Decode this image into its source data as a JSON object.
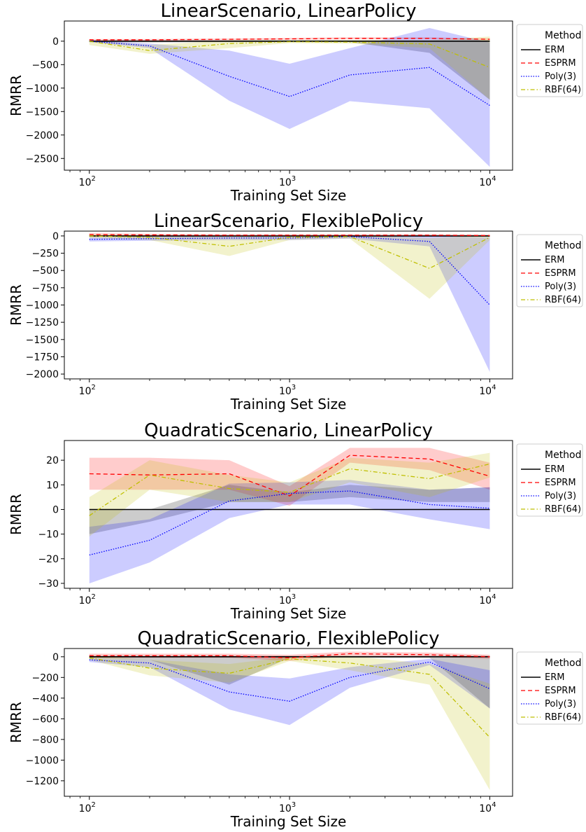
{
  "chart_data": [
    {
      "type": "line",
      "title": "LinearScenario, LinearPolicy",
      "xlabel": "Training Set Size",
      "ylabel": "RMRR",
      "xscale": "log",
      "xlim": [
        75,
        13000
      ],
      "ylim": [
        -2750,
        430
      ],
      "x_ticks": [
        {
          "base": "10",
          "exp": "2",
          "value": 100
        },
        {
          "base": "10",
          "exp": "3",
          "value": 1000
        },
        {
          "base": "10",
          "exp": "4",
          "value": 10000
        }
      ],
      "y_ticks": [
        0,
        -500,
        -1000,
        -1500,
        -2000,
        -2500
      ],
      "x": [
        100,
        200,
        500,
        1000,
        2000,
        5000,
        10000
      ],
      "legend": {
        "title": "Method",
        "placement": "outside-right"
      },
      "series": [
        {
          "name": "ERM",
          "style": "solid",
          "color": "#000000",
          "values": [
            0,
            0,
            0,
            0,
            0,
            0,
            0
          ],
          "band_lower": [
            -20,
            -30,
            -20,
            -20,
            -20,
            -250,
            -1250
          ],
          "band_upper": [
            20,
            20,
            20,
            20,
            20,
            20,
            20
          ]
        },
        {
          "name": "ESPRM",
          "style": "dashed",
          "color": "#ff0000",
          "values": [
            30,
            30,
            40,
            50,
            60,
            60,
            40
          ],
          "band_lower": [
            10,
            10,
            20,
            30,
            40,
            40,
            20
          ],
          "band_upper": [
            45,
            45,
            55,
            70,
            80,
            80,
            60
          ]
        },
        {
          "name": "Poly(3)",
          "style": "dotted",
          "color": "#0000ff",
          "values": [
            0,
            -100,
            -750,
            -1180,
            -720,
            -560,
            -1370
          ],
          "band_lower": [
            -20,
            -150,
            -1270,
            -1870,
            -1280,
            -1430,
            -2680
          ],
          "band_upper": [
            20,
            -50,
            -200,
            -480,
            -150,
            280,
            -30
          ]
        },
        {
          "name": "RBF(64)",
          "style": "dashdot",
          "color": "#bfbf00",
          "values": [
            0,
            -200,
            -50,
            -10,
            -20,
            -60,
            -560
          ],
          "band_lower": [
            -80,
            -270,
            -150,
            -40,
            -50,
            -150,
            -1250
          ],
          "band_upper": [
            20,
            -80,
            20,
            20,
            20,
            20,
            100
          ]
        }
      ]
    },
    {
      "type": "line",
      "title": "LinearScenario, FlexiblePolicy",
      "xlabel": "Training Set Size",
      "ylabel": "RMRR",
      "xscale": "log",
      "xlim": [
        75,
        13000
      ],
      "ylim": [
        -2070,
        70
      ],
      "x_ticks": [
        {
          "base": "10",
          "exp": "2",
          "value": 100
        },
        {
          "base": "10",
          "exp": "3",
          "value": 1000
        },
        {
          "base": "10",
          "exp": "4",
          "value": 10000
        }
      ],
      "y_ticks": [
        0,
        -250,
        -500,
        -750,
        -1000,
        -1250,
        -1500,
        -1750,
        -2000
      ],
      "x": [
        100,
        200,
        500,
        1000,
        2000,
        5000,
        10000
      ],
      "legend": {
        "title": "Method",
        "placement": "outside-right"
      },
      "series": [
        {
          "name": "ERM",
          "style": "solid",
          "color": "#000000",
          "values": [
            0,
            0,
            0,
            0,
            0,
            0,
            0
          ],
          "band_lower": [
            -10,
            -10,
            -10,
            -10,
            -10,
            -10,
            -10
          ],
          "band_upper": [
            10,
            10,
            10,
            10,
            10,
            10,
            10
          ]
        },
        {
          "name": "ESPRM",
          "style": "dashed",
          "color": "#ff0000",
          "values": [
            20,
            15,
            10,
            10,
            10,
            10,
            5
          ],
          "band_lower": [
            0,
            0,
            -5,
            -5,
            -5,
            -5,
            -10
          ],
          "band_upper": [
            40,
            30,
            25,
            25,
            25,
            25,
            20
          ]
        },
        {
          "name": "Poly(3)",
          "style": "dotted",
          "color": "#0000ff",
          "values": [
            -50,
            -40,
            -30,
            -30,
            -10,
            -80,
            -1000
          ],
          "band_lower": [
            -80,
            -70,
            -60,
            -60,
            -40,
            -150,
            -1970
          ],
          "band_upper": [
            -20,
            -10,
            0,
            0,
            10,
            0,
            -20
          ]
        },
        {
          "name": "RBF(64)",
          "style": "dashdot",
          "color": "#bfbf00",
          "values": [
            0,
            -20,
            -150,
            -20,
            -10,
            -470,
            -20
          ],
          "band_lower": [
            -30,
            -60,
            -290,
            -60,
            -40,
            -910,
            -60
          ],
          "band_upper": [
            20,
            10,
            -10,
            10,
            10,
            -30,
            10
          ]
        }
      ]
    },
    {
      "type": "line",
      "title": "QuadraticScenario, LinearPolicy",
      "xlabel": "Training Set Size",
      "ylabel": "RMRR",
      "xscale": "log",
      "xlim": [
        75,
        13000
      ],
      "ylim": [
        -32,
        28
      ],
      "x_ticks": [
        {
          "base": "10",
          "exp": "2",
          "value": 100
        },
        {
          "base": "10",
          "exp": "3",
          "value": 1000
        },
        {
          "base": "10",
          "exp": "4",
          "value": 10000
        }
      ],
      "y_ticks": [
        20,
        10,
        0,
        -10,
        -20,
        -30
      ],
      "x": [
        100,
        200,
        500,
        1000,
        2000,
        5000,
        10000
      ],
      "legend": {
        "title": "Method",
        "placement": "outside-right"
      },
      "series": [
        {
          "name": "ERM",
          "style": "solid",
          "color": "#000000",
          "values": [
            0,
            0,
            0,
            0,
            0,
            0,
            0
          ],
          "band_lower": [
            -10,
            -5,
            3,
            3,
            5,
            3,
            3
          ],
          "band_upper": [
            0,
            0,
            10,
            7,
            10,
            8,
            9
          ]
        },
        {
          "name": "ESPRM",
          "style": "dashed",
          "color": "#ff0000",
          "values": [
            14.5,
            14,
            14.5,
            5.5,
            22,
            20.5,
            13.5
          ],
          "band_lower": [
            8,
            8,
            8,
            1.5,
            19,
            16,
            8
          ],
          "band_upper": [
            21,
            21,
            20,
            9.5,
            25,
            25,
            19
          ]
        },
        {
          "name": "Poly(3)",
          "style": "dotted",
          "color": "#0000ff",
          "values": [
            -18.5,
            -12.5,
            3.5,
            6.5,
            7.5,
            2,
            0.5
          ],
          "band_lower": [
            -30,
            -21.5,
            -3.5,
            2,
            2,
            -4,
            -8
          ],
          "band_upper": [
            -7,
            -4,
            10.5,
            11,
            12,
            8,
            9
          ]
        },
        {
          "name": "RBF(64)",
          "style": "dashdot",
          "color": "#bfbf00",
          "values": [
            -2.5,
            14,
            8.5,
            7,
            16.5,
            12.5,
            18.5
          ],
          "band_lower": [
            -11,
            8,
            3,
            3,
            11,
            5,
            13
          ],
          "band_upper": [
            5,
            20,
            14,
            11,
            21,
            19,
            23
          ]
        }
      ]
    },
    {
      "type": "line",
      "title": "QuadraticScenario, FlexiblePolicy",
      "xlabel": "Training Set Size",
      "ylabel": "RMRR",
      "xscale": "log",
      "xlim": [
        75,
        13000
      ],
      "ylim": [
        -1350,
        80
      ],
      "x_ticks": [
        {
          "base": "10",
          "exp": "2",
          "value": 100
        },
        {
          "base": "10",
          "exp": "3",
          "value": 1000
        },
        {
          "base": "10",
          "exp": "4",
          "value": 10000
        }
      ],
      "y_ticks": [
        0,
        -200,
        -400,
        -600,
        -800,
        -1000,
        -1200
      ],
      "x": [
        100,
        200,
        500,
        1000,
        2000,
        5000,
        10000
      ],
      "legend": {
        "title": "Method",
        "placement": "outside-right"
      },
      "series": [
        {
          "name": "ERM",
          "style": "solid",
          "color": "#000000",
          "values": [
            0,
            0,
            0,
            0,
            0,
            0,
            0
          ],
          "band_lower": [
            -10,
            -30,
            -270,
            -10,
            -10,
            -10,
            -500
          ],
          "band_upper": [
            10,
            10,
            10,
            10,
            10,
            10,
            10
          ]
        },
        {
          "name": "ESPRM",
          "style": "dashed",
          "color": "#ff0000",
          "values": [
            10,
            10,
            10,
            -10,
            30,
            20,
            0
          ],
          "band_lower": [
            -10,
            -10,
            -10,
            -40,
            10,
            0,
            -20
          ],
          "band_upper": [
            30,
            30,
            30,
            20,
            50,
            40,
            20
          ]
        },
        {
          "name": "Poly(3)",
          "style": "dotted",
          "color": "#0000ff",
          "values": [
            -30,
            -60,
            -340,
            -430,
            -200,
            -50,
            -310
          ],
          "band_lower": [
            -50,
            -100,
            -510,
            -660,
            -300,
            -80,
            -500
          ],
          "band_upper": [
            -10,
            -30,
            -170,
            -210,
            -100,
            -20,
            -130
          ]
        },
        {
          "name": "RBF(64)",
          "style": "dashdot",
          "color": "#bfbf00",
          "values": [
            -10,
            -110,
            -160,
            -20,
            -60,
            -170,
            -780
          ],
          "band_lower": [
            -30,
            -180,
            -250,
            -40,
            -130,
            -270,
            -1290
          ],
          "band_upper": [
            10,
            -30,
            -70,
            0,
            10,
            -70,
            -260
          ]
        }
      ]
    }
  ]
}
